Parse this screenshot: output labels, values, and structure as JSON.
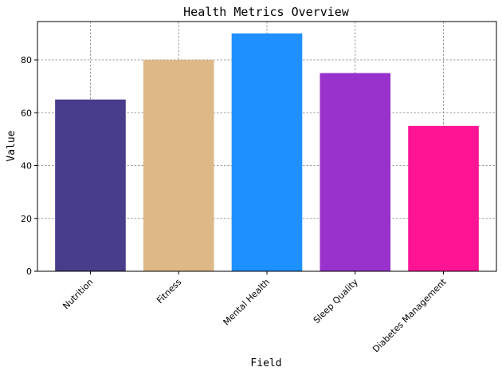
{
  "chart_data": {
    "type": "bar",
    "title": "Health Metrics Overview",
    "xlabel": "Field",
    "ylabel": "Value",
    "categories": [
      "Nutrition",
      "Fitness",
      "Mental Health",
      "Sleep Quality",
      "Diabetes Management"
    ],
    "values": [
      65,
      80,
      90,
      75,
      55
    ],
    "colors": [
      "#483D8B",
      "#DEB887",
      "#1E90FF",
      "#9932CC",
      "#FF1493"
    ],
    "ylim": [
      0,
      94.5
    ],
    "yticks": [
      0,
      20,
      40,
      60,
      80
    ],
    "grid": true
  }
}
